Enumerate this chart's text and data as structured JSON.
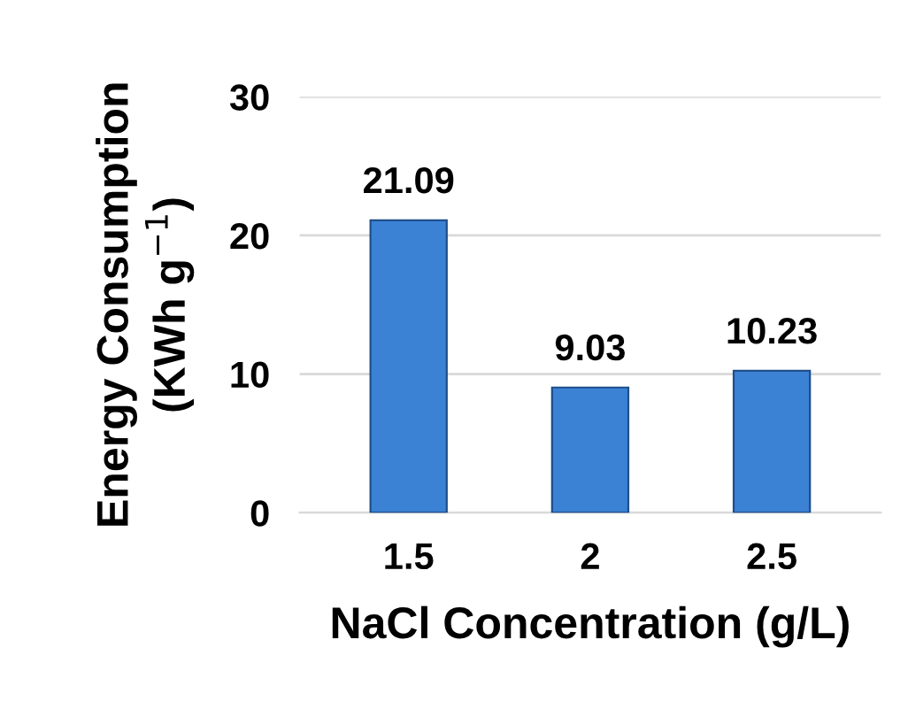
{
  "chart_data": {
    "type": "bar",
    "categories": [
      "1.5",
      "2",
      "2.5"
    ],
    "values": [
      21.09,
      9.03,
      10.23
    ],
    "color": "#3b82d4",
    "ylim": [
      0,
      30
    ],
    "yticks": [
      0,
      10,
      20,
      30
    ],
    "grid": "y",
    "data_labels": true,
    "xlabel": "NaCl Concentration (g/L)",
    "ylabel": "Energy Consumption\n(KWh g$^{−1}$)"
  }
}
